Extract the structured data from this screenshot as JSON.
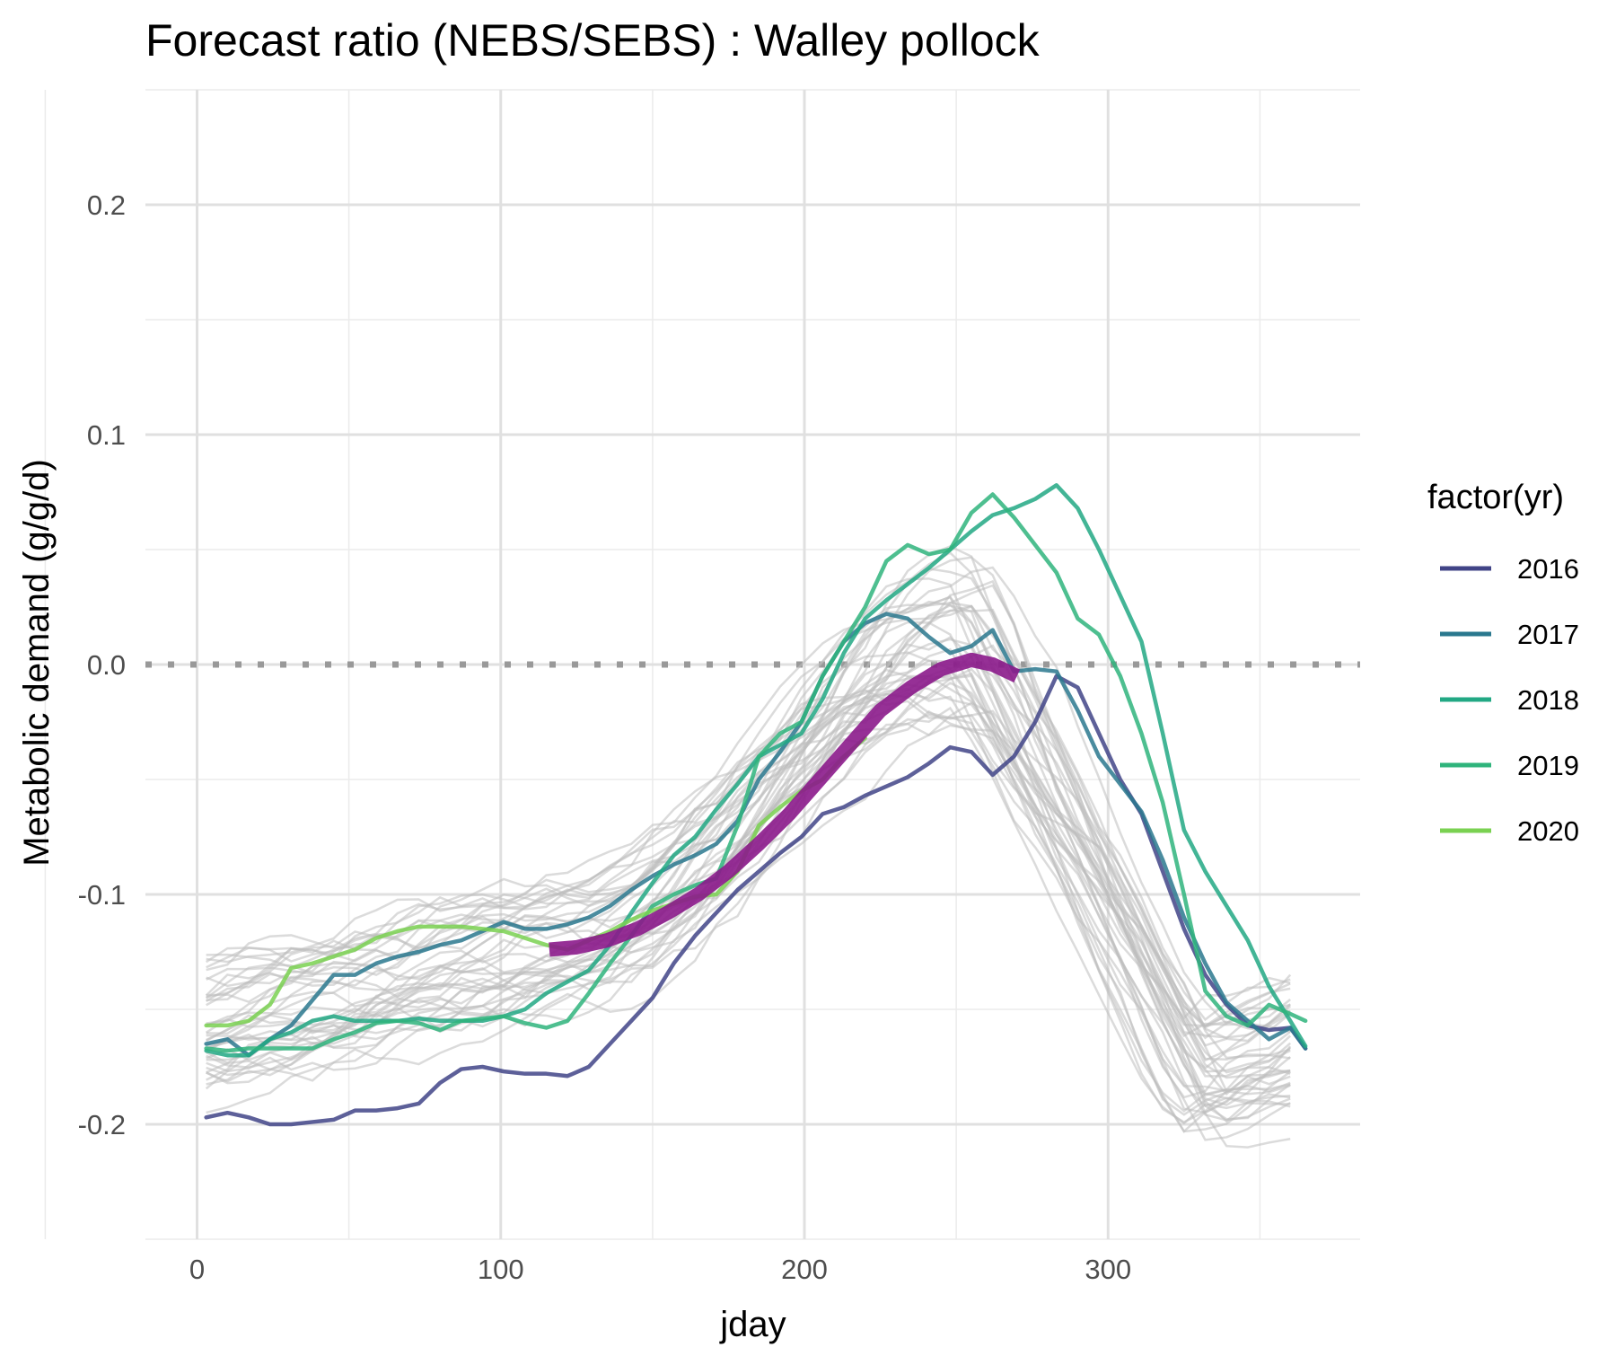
{
  "chart_data": {
    "type": "line",
    "title": "Forecast ratio (NEBS/SEBS) : Walley pollock",
    "xlabel": "jday",
    "ylabel": "Metabolic demand (g/g/d)",
    "xlim": [
      -17,
      383
    ],
    "ylim": [
      -0.25,
      0.25
    ],
    "x_ticks": [
      0,
      100,
      200,
      300
    ],
    "x_tick_labels": [
      "0",
      "100",
      "200",
      "300"
    ],
    "y_ticks": [
      -0.2,
      -0.1,
      0.0,
      0.1,
      0.2
    ],
    "y_tick_labels": [
      "-0.2",
      "-0.1",
      "0.0",
      "0.1",
      "0.2"
    ],
    "grid": true,
    "reference_line": {
      "y": 0,
      "style": "dotted",
      "color": "#999999"
    },
    "legend": {
      "title": "factor(yr)",
      "placement": "right",
      "entries": [
        "2016",
        "2017",
        "2018",
        "2019",
        "2020"
      ]
    },
    "background_series": {
      "color": "#bdbdbd",
      "count": 40,
      "description": "grey lines for other years"
    },
    "series": [
      {
        "name": "2016",
        "color": "#414487",
        "x": [
          3,
          10,
          17,
          24,
          31,
          38,
          45,
          52,
          59,
          66,
          73,
          80,
          87,
          94,
          101,
          108,
          115,
          122,
          129,
          136,
          143,
          150,
          157,
          164,
          171,
          178,
          185,
          192,
          199,
          206,
          213,
          220,
          227,
          234,
          241,
          248,
          255,
          262,
          269,
          276,
          283,
          290,
          297,
          304,
          311,
          318,
          325,
          332,
          339,
          346,
          353,
          360,
          365
        ],
        "values": [
          -0.197,
          -0.195,
          -0.197,
          -0.2,
          -0.2,
          -0.199,
          -0.198,
          -0.194,
          -0.194,
          -0.193,
          -0.191,
          -0.182,
          -0.176,
          -0.175,
          -0.177,
          -0.178,
          -0.178,
          -0.179,
          -0.175,
          -0.165,
          -0.155,
          -0.145,
          -0.13,
          -0.118,
          -0.108,
          -0.098,
          -0.09,
          -0.082,
          -0.075,
          -0.065,
          -0.062,
          -0.057,
          -0.053,
          -0.049,
          -0.043,
          -0.036,
          -0.038,
          -0.048,
          -0.04,
          -0.025,
          -0.005,
          -0.01,
          -0.03,
          -0.05,
          -0.065,
          -0.09,
          -0.115,
          -0.135,
          -0.148,
          -0.157,
          -0.159,
          -0.158,
          -0.167
        ]
      },
      {
        "name": "2017",
        "color": "#2a788e",
        "x": [
          3,
          10,
          17,
          24,
          31,
          38,
          45,
          52,
          59,
          66,
          73,
          80,
          87,
          94,
          101,
          108,
          115,
          122,
          129,
          136,
          143,
          150,
          157,
          164,
          171,
          178,
          185,
          192,
          199,
          206,
          213,
          220,
          227,
          234,
          241,
          248,
          255,
          262,
          269,
          276,
          283,
          290,
          297,
          304,
          311,
          318,
          325,
          332,
          339,
          346,
          353,
          360,
          365
        ],
        "values": [
          -0.165,
          -0.163,
          -0.17,
          -0.163,
          -0.157,
          -0.146,
          -0.135,
          -0.135,
          -0.13,
          -0.127,
          -0.125,
          -0.122,
          -0.12,
          -0.116,
          -0.112,
          -0.115,
          -0.115,
          -0.113,
          -0.11,
          -0.105,
          -0.098,
          -0.092,
          -0.087,
          -0.083,
          -0.078,
          -0.068,
          -0.05,
          -0.038,
          -0.025,
          -0.005,
          0.01,
          0.018,
          0.022,
          0.02,
          0.012,
          0.005,
          0.008,
          0.015,
          -0.003,
          -0.002,
          -0.003,
          -0.02,
          -0.04,
          -0.052,
          -0.064,
          -0.085,
          -0.11,
          -0.13,
          -0.147,
          -0.155,
          -0.163,
          -0.158,
          -0.167
        ]
      },
      {
        "name": "2018",
        "color": "#22a884",
        "x": [
          3,
          10,
          17,
          24,
          31,
          38,
          45,
          52,
          59,
          66,
          73,
          80,
          87,
          94,
          101,
          108,
          115,
          122,
          129,
          136,
          143,
          150,
          157,
          164,
          171,
          178,
          185,
          192,
          199,
          206,
          213,
          220,
          227,
          234,
          241,
          248,
          255,
          262,
          269,
          276,
          283,
          290,
          297,
          304,
          311,
          318,
          325,
          332,
          339,
          346,
          353,
          360,
          365
        ],
        "values": [
          -0.168,
          -0.17,
          -0.17,
          -0.163,
          -0.16,
          -0.155,
          -0.153,
          -0.155,
          -0.155,
          -0.155,
          -0.154,
          -0.155,
          -0.155,
          -0.155,
          -0.153,
          -0.15,
          -0.143,
          -0.138,
          -0.133,
          -0.122,
          -0.108,
          -0.095,
          -0.083,
          -0.075,
          -0.063,
          -0.052,
          -0.04,
          -0.035,
          -0.03,
          -0.015,
          0.005,
          0.02,
          0.028,
          0.035,
          0.042,
          0.05,
          0.058,
          0.065,
          0.068,
          0.072,
          0.078,
          0.068,
          0.05,
          0.03,
          0.01,
          -0.03,
          -0.072,
          -0.09,
          -0.105,
          -0.12,
          -0.14,
          -0.155,
          -0.166
        ]
      },
      {
        "name": "2019",
        "color": "#2fb47c",
        "x": [
          3,
          10,
          17,
          24,
          31,
          38,
          45,
          52,
          59,
          66,
          73,
          80,
          87,
          94,
          101,
          108,
          115,
          122,
          129,
          136,
          143,
          150,
          157,
          164,
          171,
          178,
          185,
          192,
          199,
          206,
          213,
          220,
          227,
          234,
          241,
          248,
          255,
          262,
          269,
          276,
          283,
          290,
          297,
          304,
          311,
          318,
          325,
          332,
          339,
          346,
          353,
          360,
          365
        ],
        "values": [
          -0.167,
          -0.168,
          -0.167,
          -0.167,
          -0.167,
          -0.167,
          -0.163,
          -0.16,
          -0.156,
          -0.155,
          -0.156,
          -0.159,
          -0.155,
          -0.154,
          -0.153,
          -0.156,
          -0.158,
          -0.155,
          -0.143,
          -0.13,
          -0.118,
          -0.105,
          -0.1,
          -0.096,
          -0.093,
          -0.07,
          -0.04,
          -0.03,
          -0.025,
          -0.005,
          0.01,
          0.025,
          0.045,
          0.052,
          0.048,
          0.05,
          0.066,
          0.074,
          0.064,
          0.052,
          0.04,
          0.02,
          0.013,
          -0.005,
          -0.03,
          -0.06,
          -0.1,
          -0.142,
          -0.153,
          -0.157,
          -0.148,
          -0.152,
          -0.155
        ]
      },
      {
        "name": "2020",
        "color": "#7ad151",
        "x": [
          3,
          10,
          17,
          24,
          31,
          38,
          45,
          52,
          59,
          66,
          73,
          80,
          87,
          94,
          101,
          108,
          115,
          122,
          129,
          136,
          143,
          150,
          157,
          164,
          171,
          178,
          185,
          192,
          199,
          206,
          213,
          220
        ],
        "values": [
          -0.157,
          -0.157,
          -0.155,
          -0.148,
          -0.132,
          -0.13,
          -0.127,
          -0.124,
          -0.119,
          -0.116,
          -0.114,
          -0.114,
          -0.114,
          -0.115,
          -0.116,
          -0.119,
          -0.122,
          -0.124,
          -0.12,
          -0.116,
          -0.111,
          -0.107,
          -0.104,
          -0.101,
          -0.1,
          -0.09,
          -0.07,
          -0.062,
          -0.055,
          -0.05,
          -0.04,
          -0.032
        ]
      },
      {
        "name": "",
        "color": "#8b1a8b",
        "highlight": true,
        "x": [
          116,
          125,
          135,
          145,
          155,
          165,
          175,
          185,
          195,
          205,
          215,
          225,
          235,
          245,
          255,
          262,
          270
        ],
        "values": [
          -0.124,
          -0.123,
          -0.12,
          -0.115,
          -0.108,
          -0.1,
          -0.09,
          -0.078,
          -0.065,
          -0.05,
          -0.035,
          -0.02,
          -0.01,
          -0.002,
          0.002,
          0.0,
          -0.005
        ]
      }
    ]
  }
}
